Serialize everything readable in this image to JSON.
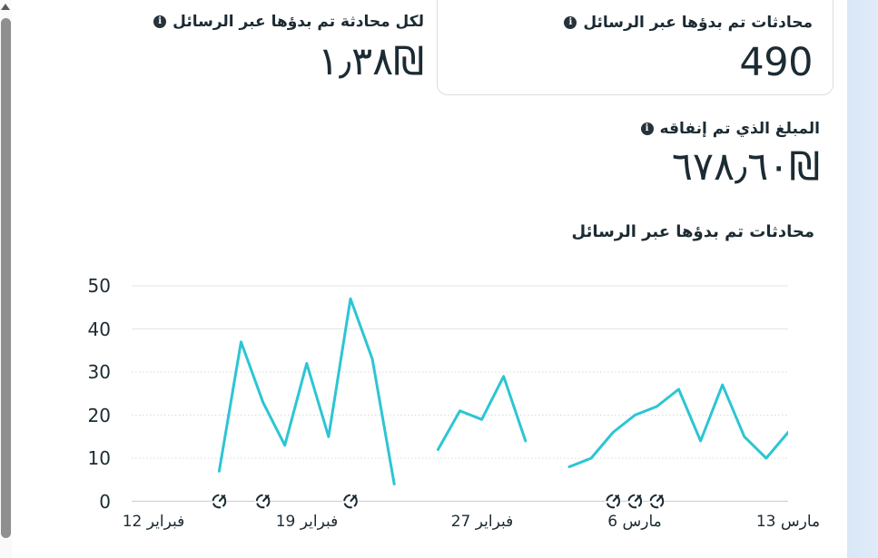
{
  "cards": [
    {
      "id": "cost-per-conversation",
      "label": "لكل محادثة تم بدؤها عبر الرسائل",
      "value": "١٫٣٨₪"
    },
    {
      "id": "conversations-started",
      "label": "محادثات تم بدؤها عبر الرسائل",
      "value": "490"
    },
    {
      "id": "amount-spent",
      "label": "المبلغ الذي تم إنفاقه",
      "value": "٦٧٨٫٦٠₪"
    }
  ],
  "icons": {
    "info": "i",
    "edit_marker": "dashed-circle-pencil",
    "scroll_up_arrow": "triangle-up"
  },
  "colors": {
    "text_dark": "#1c2b33",
    "line_teal": "#2cc5d3",
    "grid_light": "#e4e6ea",
    "grid_dashed": "#d7d9de",
    "axis_zero": "#cfd2d7",
    "card_border": "#dadde1",
    "side_strip_blue": "#dce9f7",
    "scroll_thumb": "#8f8f8f"
  },
  "chart_data": {
    "type": "line",
    "title": "محادثات تم بدؤها عبر الرسائل",
    "xlabel": "",
    "ylabel": "",
    "ylim": [
      0,
      50
    ],
    "yticks": [
      0,
      10,
      20,
      30,
      40,
      50
    ],
    "grid": true,
    "legend": false,
    "x_unit": "day-index (0 = right before first tick, daily points)",
    "x_domain": [
      0,
      30
    ],
    "xticks": [
      {
        "pos": 1,
        "label": "12 فبراير"
      },
      {
        "pos": 8,
        "label": "19 فبراير"
      },
      {
        "pos": 16,
        "label": "27 فبراير"
      },
      {
        "pos": 23,
        "label": "6 مارس"
      },
      {
        "pos": 30,
        "label": "13 مارس"
      }
    ],
    "line_color": "#2cc5d3",
    "segments": [
      {
        "name": "segment-1",
        "points": [
          [
            4,
            7
          ],
          [
            5,
            37
          ],
          [
            6,
            23
          ],
          [
            7,
            13
          ],
          [
            8,
            32
          ],
          [
            9,
            15
          ],
          [
            10,
            47
          ],
          [
            11,
            33
          ],
          [
            12,
            4
          ]
        ]
      },
      {
        "name": "segment-2",
        "points": [
          [
            14,
            12
          ],
          [
            15,
            21
          ],
          [
            16,
            19
          ],
          [
            17,
            29
          ],
          [
            18,
            14
          ]
        ]
      },
      {
        "name": "segment-3",
        "points": [
          [
            20,
            8
          ],
          [
            21,
            10
          ],
          [
            22,
            16
          ],
          [
            23,
            20
          ],
          [
            24,
            22
          ],
          [
            25,
            26
          ],
          [
            26,
            14
          ],
          [
            27,
            27
          ],
          [
            28,
            15
          ],
          [
            29,
            10
          ],
          [
            30,
            16
          ]
        ]
      }
    ],
    "edit_markers": [
      4,
      6,
      10,
      22,
      23,
      24
    ]
  }
}
